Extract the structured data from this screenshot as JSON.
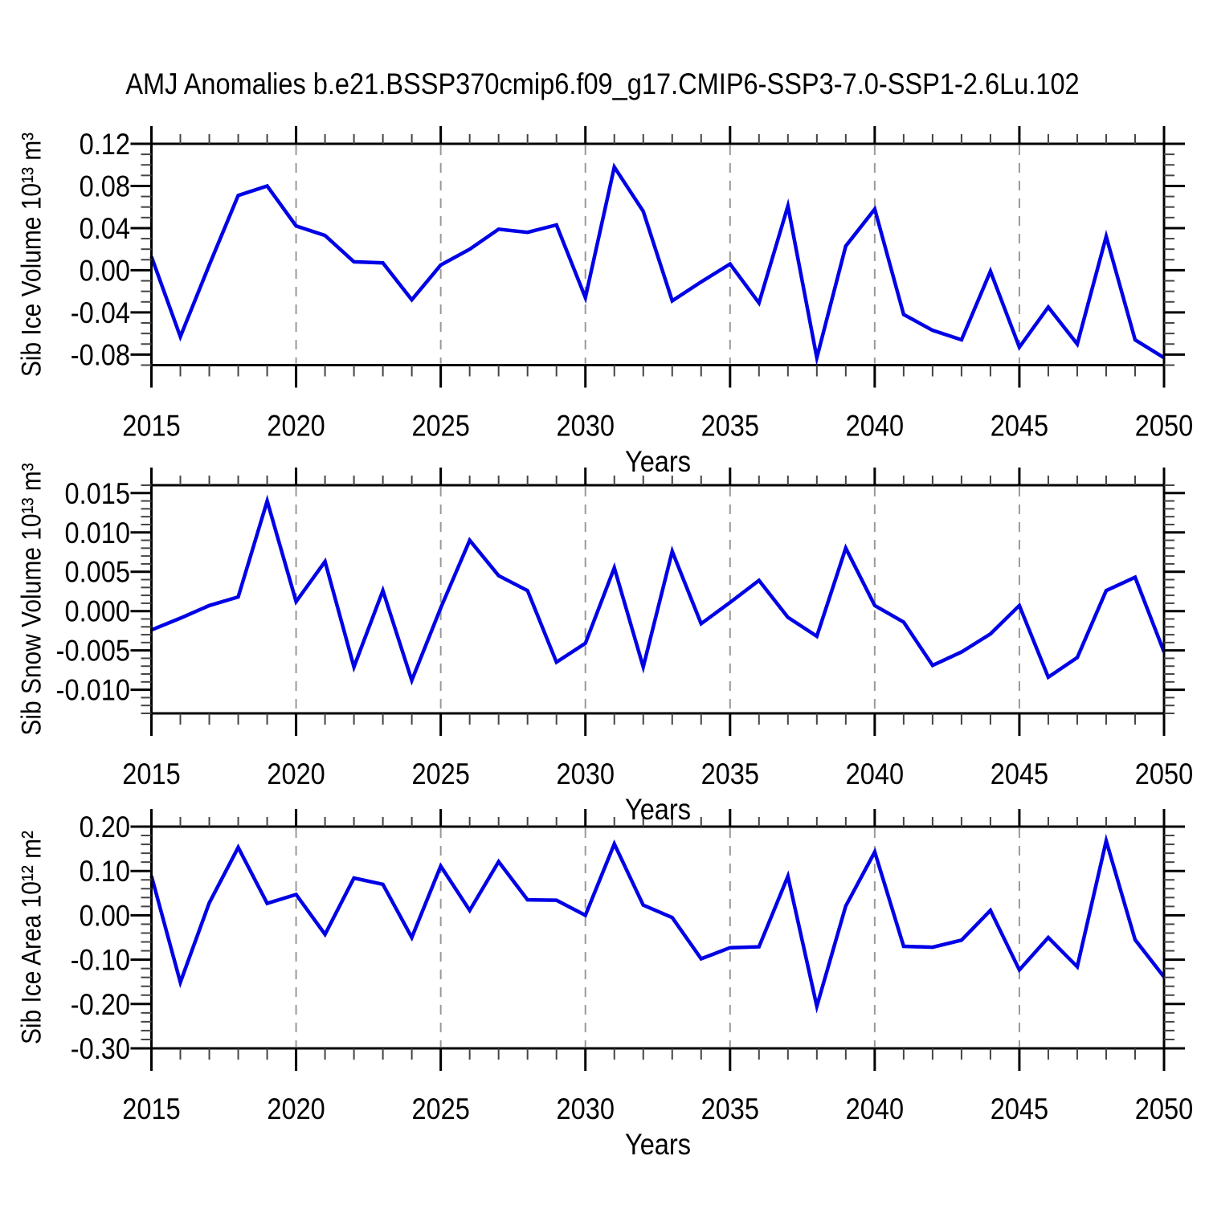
{
  "title": "AMJ Anomalies b.e21.BSSP370cmip6.f09_g17.CMIP6-SSP3-7.0-SSP1-2.6Lu.102",
  "colors": {
    "line": "#0000E6",
    "frame": "#000000",
    "grid": "#999999",
    "minor_tick": "#444444",
    "text": "#000000",
    "background": "#FFFFFF"
  },
  "chart_data": [
    {
      "type": "line",
      "series_name": "AMJ anomaly",
      "ylabel": "Sib Ice Volume 10¹³ m³",
      "xlabel": "Years",
      "x": [
        2015,
        2016,
        2017,
        2018,
        2019,
        2020,
        2021,
        2022,
        2023,
        2024,
        2025,
        2026,
        2027,
        2028,
        2029,
        2030,
        2031,
        2032,
        2033,
        2034,
        2035,
        2036,
        2037,
        2038,
        2039,
        2040,
        2041,
        2042,
        2043,
        2044,
        2045,
        2046,
        2047,
        2048,
        2049,
        2050
      ],
      "values": [
        0.013,
        -0.063,
        0.005,
        0.071,
        0.08,
        0.042,
        0.033,
        0.008,
        0.007,
        -0.028,
        0.005,
        0.02,
        0.039,
        0.036,
        0.043,
        -0.026,
        0.098,
        0.056,
        -0.029,
        -0.011,
        0.006,
        -0.031,
        0.061,
        -0.083,
        0.023,
        0.058,
        -0.042,
        -0.057,
        -0.066,
        -0.001,
        -0.073,
        -0.035,
        -0.07,
        0.032,
        -0.066,
        -0.083
      ],
      "xlim": [
        2015,
        2050
      ],
      "ylim": [
        -0.09,
        0.12
      ],
      "xticks": [
        2015,
        2020,
        2025,
        2030,
        2035,
        2040,
        2045,
        2050
      ],
      "xtick_labels": [
        "2015",
        "2020",
        "2025",
        "2030",
        "2035",
        "2040",
        "2045",
        "2050"
      ],
      "xminor_step": 1,
      "yticks": [
        0.12,
        0.08,
        0.04,
        0.0,
        -0.04,
        -0.08
      ],
      "ytick_labels": [
        "0.12",
        "0.08",
        "0.04",
        "0.00",
        "-0.04",
        "-0.08"
      ],
      "yminor_step": 0.01,
      "gridlines_x": [
        2020,
        2025,
        2030,
        2035,
        2040,
        2045
      ],
      "grid": "vertical-dashed",
      "legend": "none"
    },
    {
      "type": "line",
      "series_name": "AMJ anomaly",
      "ylabel": "Sib Snow Volume 10¹³ m³",
      "xlabel": "Years",
      "x": [
        2015,
        2016,
        2017,
        2018,
        2019,
        2020,
        2021,
        2022,
        2023,
        2024,
        2025,
        2026,
        2027,
        2028,
        2029,
        2030,
        2031,
        2032,
        2033,
        2034,
        2035,
        2036,
        2037,
        2038,
        2039,
        2040,
        2041,
        2042,
        2043,
        2044,
        2045,
        2046,
        2047,
        2048,
        2049,
        2050
      ],
      "values": [
        -0.0024,
        -0.0009,
        0.0007,
        0.0018,
        0.014,
        0.0012,
        0.0063,
        -0.0071,
        0.0026,
        -0.0088,
        0.0004,
        0.009,
        0.0045,
        0.0026,
        -0.0065,
        -0.0041,
        0.0055,
        -0.0071,
        0.0076,
        -0.0016,
        0.0011,
        0.0039,
        -0.0008,
        -0.0032,
        0.008,
        0.0007,
        -0.0014,
        -0.0069,
        -0.0052,
        -0.0029,
        0.0007,
        -0.0084,
        -0.0059,
        0.0026,
        0.0043,
        -0.0052
      ],
      "xlim": [
        2015,
        2050
      ],
      "ylim": [
        -0.013,
        0.016
      ],
      "xticks": [
        2015,
        2020,
        2025,
        2030,
        2035,
        2040,
        2045,
        2050
      ],
      "xtick_labels": [
        "2015",
        "2020",
        "2025",
        "2030",
        "2035",
        "2040",
        "2045",
        "2050"
      ],
      "xminor_step": 1,
      "yticks": [
        0.015,
        0.01,
        0.005,
        0.0,
        -0.005,
        -0.01
      ],
      "ytick_labels": [
        "0.015",
        "0.010",
        "0.005",
        "0.000",
        "-0.005",
        "-0.010"
      ],
      "yminor_step": 0.001,
      "gridlines_x": [
        2020,
        2025,
        2030,
        2035,
        2040,
        2045
      ],
      "grid": "vertical-dashed",
      "legend": "none"
    },
    {
      "type": "line",
      "series_name": "AMJ anomaly",
      "ylabel": "Sib Ice Area 10¹² m²",
      "xlabel": "Years",
      "x": [
        2015,
        2016,
        2017,
        2018,
        2019,
        2020,
        2021,
        2022,
        2023,
        2024,
        2025,
        2026,
        2027,
        2028,
        2029,
        2030,
        2031,
        2032,
        2033,
        2034,
        2035,
        2036,
        2037,
        2038,
        2039,
        2040,
        2041,
        2042,
        2043,
        2044,
        2045,
        2046,
        2047,
        2048,
        2049,
        2050
      ],
      "values": [
        0.089,
        -0.151,
        0.028,
        0.153,
        0.027,
        0.047,
        -0.043,
        0.084,
        0.07,
        -0.05,
        0.111,
        0.011,
        0.121,
        0.035,
        0.034,
        0.0,
        0.161,
        0.023,
        -0.005,
        -0.098,
        -0.073,
        -0.071,
        0.088,
        -0.205,
        0.021,
        0.143,
        -0.07,
        -0.072,
        -0.056,
        0.011,
        -0.123,
        -0.05,
        -0.116,
        0.168,
        -0.055,
        -0.139
      ],
      "xlim": [
        2015,
        2050
      ],
      "ylim": [
        -0.3,
        0.2
      ],
      "xticks": [
        2015,
        2020,
        2025,
        2030,
        2035,
        2040,
        2045,
        2050
      ],
      "xtick_labels": [
        "2015",
        "2020",
        "2025",
        "2030",
        "2035",
        "2040",
        "2045",
        "2050"
      ],
      "xminor_step": 1,
      "yticks": [
        0.2,
        0.1,
        0.0,
        -0.1,
        -0.2,
        -0.3
      ],
      "ytick_labels": [
        "0.20",
        "0.10",
        "0.00",
        "-0.10",
        "-0.20",
        "-0.30"
      ],
      "yminor_step": 0.02,
      "gridlines_x": [
        2020,
        2025,
        2030,
        2035,
        2040,
        2045
      ],
      "grid": "vertical-dashed",
      "legend": "none"
    }
  ]
}
